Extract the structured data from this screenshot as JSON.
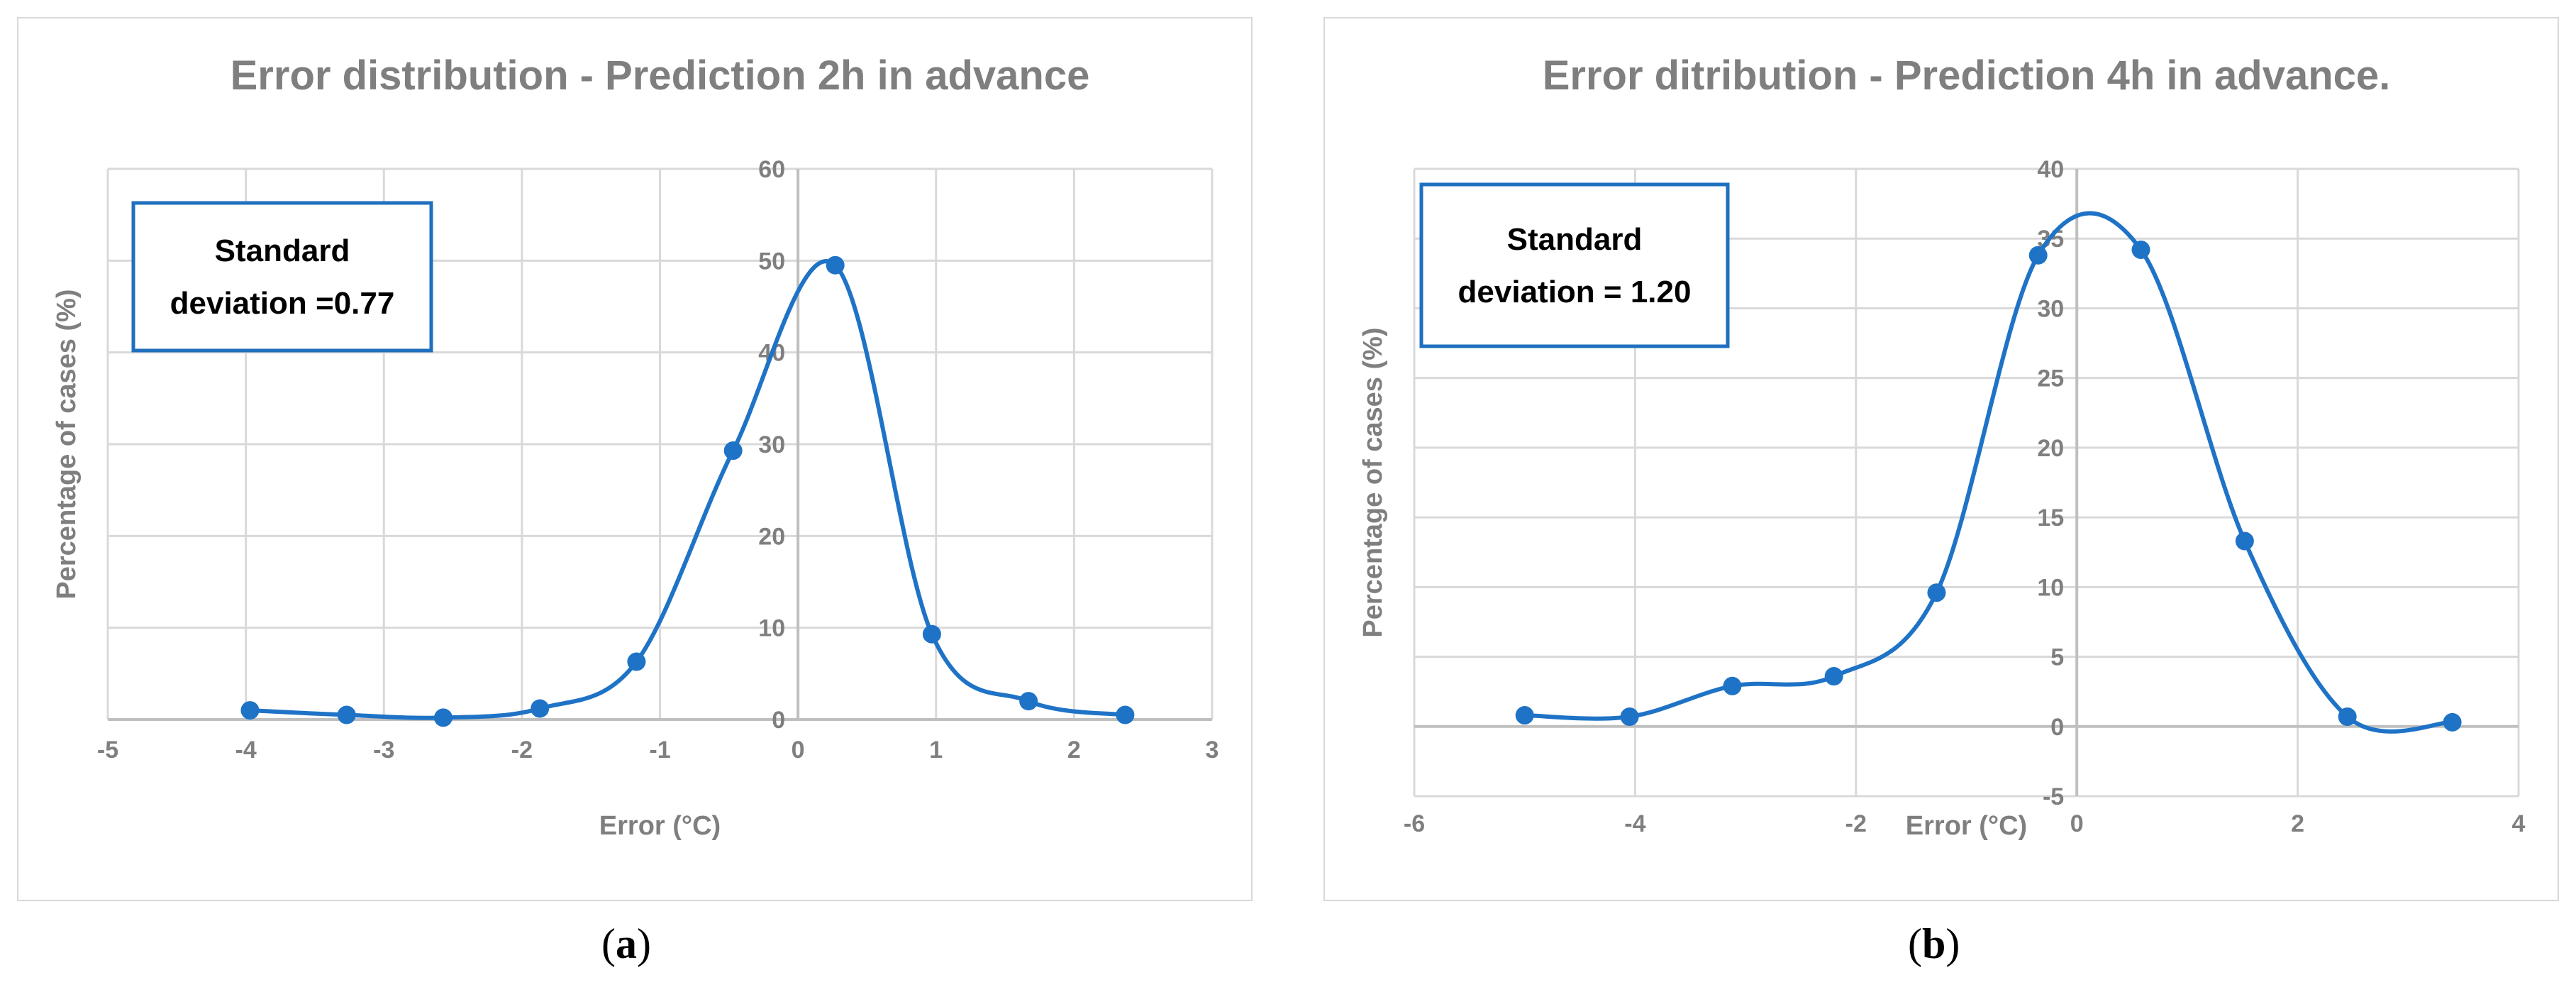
{
  "colors": {
    "series": "#1f73c6",
    "grid": "#d9d9d9",
    "axis": "#bfbfbf",
    "text": "#7f7f7f",
    "annot_border": "#1f6fbe"
  },
  "sublabels": {
    "a": "a",
    "b": "b"
  },
  "chart_data": [
    {
      "type": "line",
      "smooth": true,
      "title": "Error distribution - Prediction 2h in advance",
      "xlabel": "Error (°C)",
      "ylabel": "Percentage of cases (%)",
      "xlim": [
        -5,
        3
      ],
      "ylim": [
        0,
        60
      ],
      "x_ticks": [
        -5,
        -4,
        -3,
        -2,
        -1,
        0,
        1,
        2,
        3
      ],
      "y_ticks": [
        0,
        10,
        20,
        30,
        40,
        50,
        60
      ],
      "grid": "vertical and horizontal",
      "legend": "none",
      "annotation": {
        "lines": [
          "Standard",
          "deviation =0.77"
        ]
      },
      "series": [
        {
          "x": [
            -3.97,
            -3.27,
            -2.57,
            -1.87,
            -1.17,
            -0.47,
            0.27,
            0.97,
            1.67,
            2.37
          ],
          "y": [
            1.0,
            0.5,
            0.2,
            1.2,
            6.3,
            29.3,
            49.5,
            9.3,
            2.0,
            0.5
          ]
        }
      ]
    },
    {
      "type": "line",
      "smooth": true,
      "title": "Error ditribution - Prediction 4h in advance.",
      "xlabel": "Error (°C)",
      "ylabel": "Percentage of cases (%)",
      "xlim": [
        -6,
        4
      ],
      "ylim": [
        -5,
        40
      ],
      "x_ticks": [
        -6,
        -4,
        -2,
        0,
        2,
        4
      ],
      "y_ticks": [
        -5,
        0,
        5,
        10,
        15,
        20,
        25,
        30,
        35,
        40
      ],
      "grid": "vertical and horizontal",
      "legend": "none",
      "annotation": {
        "lines": [
          "Standard",
          "deviation = 1.20"
        ]
      },
      "series": [
        {
          "x": [
            -5.0,
            -4.05,
            -3.12,
            -2.2,
            -1.27,
            -0.35,
            0.58,
            1.52,
            2.45,
            3.4
          ],
          "y": [
            0.8,
            0.7,
            2.9,
            3.6,
            9.6,
            33.8,
            34.2,
            13.3,
            0.7,
            0.3
          ]
        }
      ]
    }
  ]
}
